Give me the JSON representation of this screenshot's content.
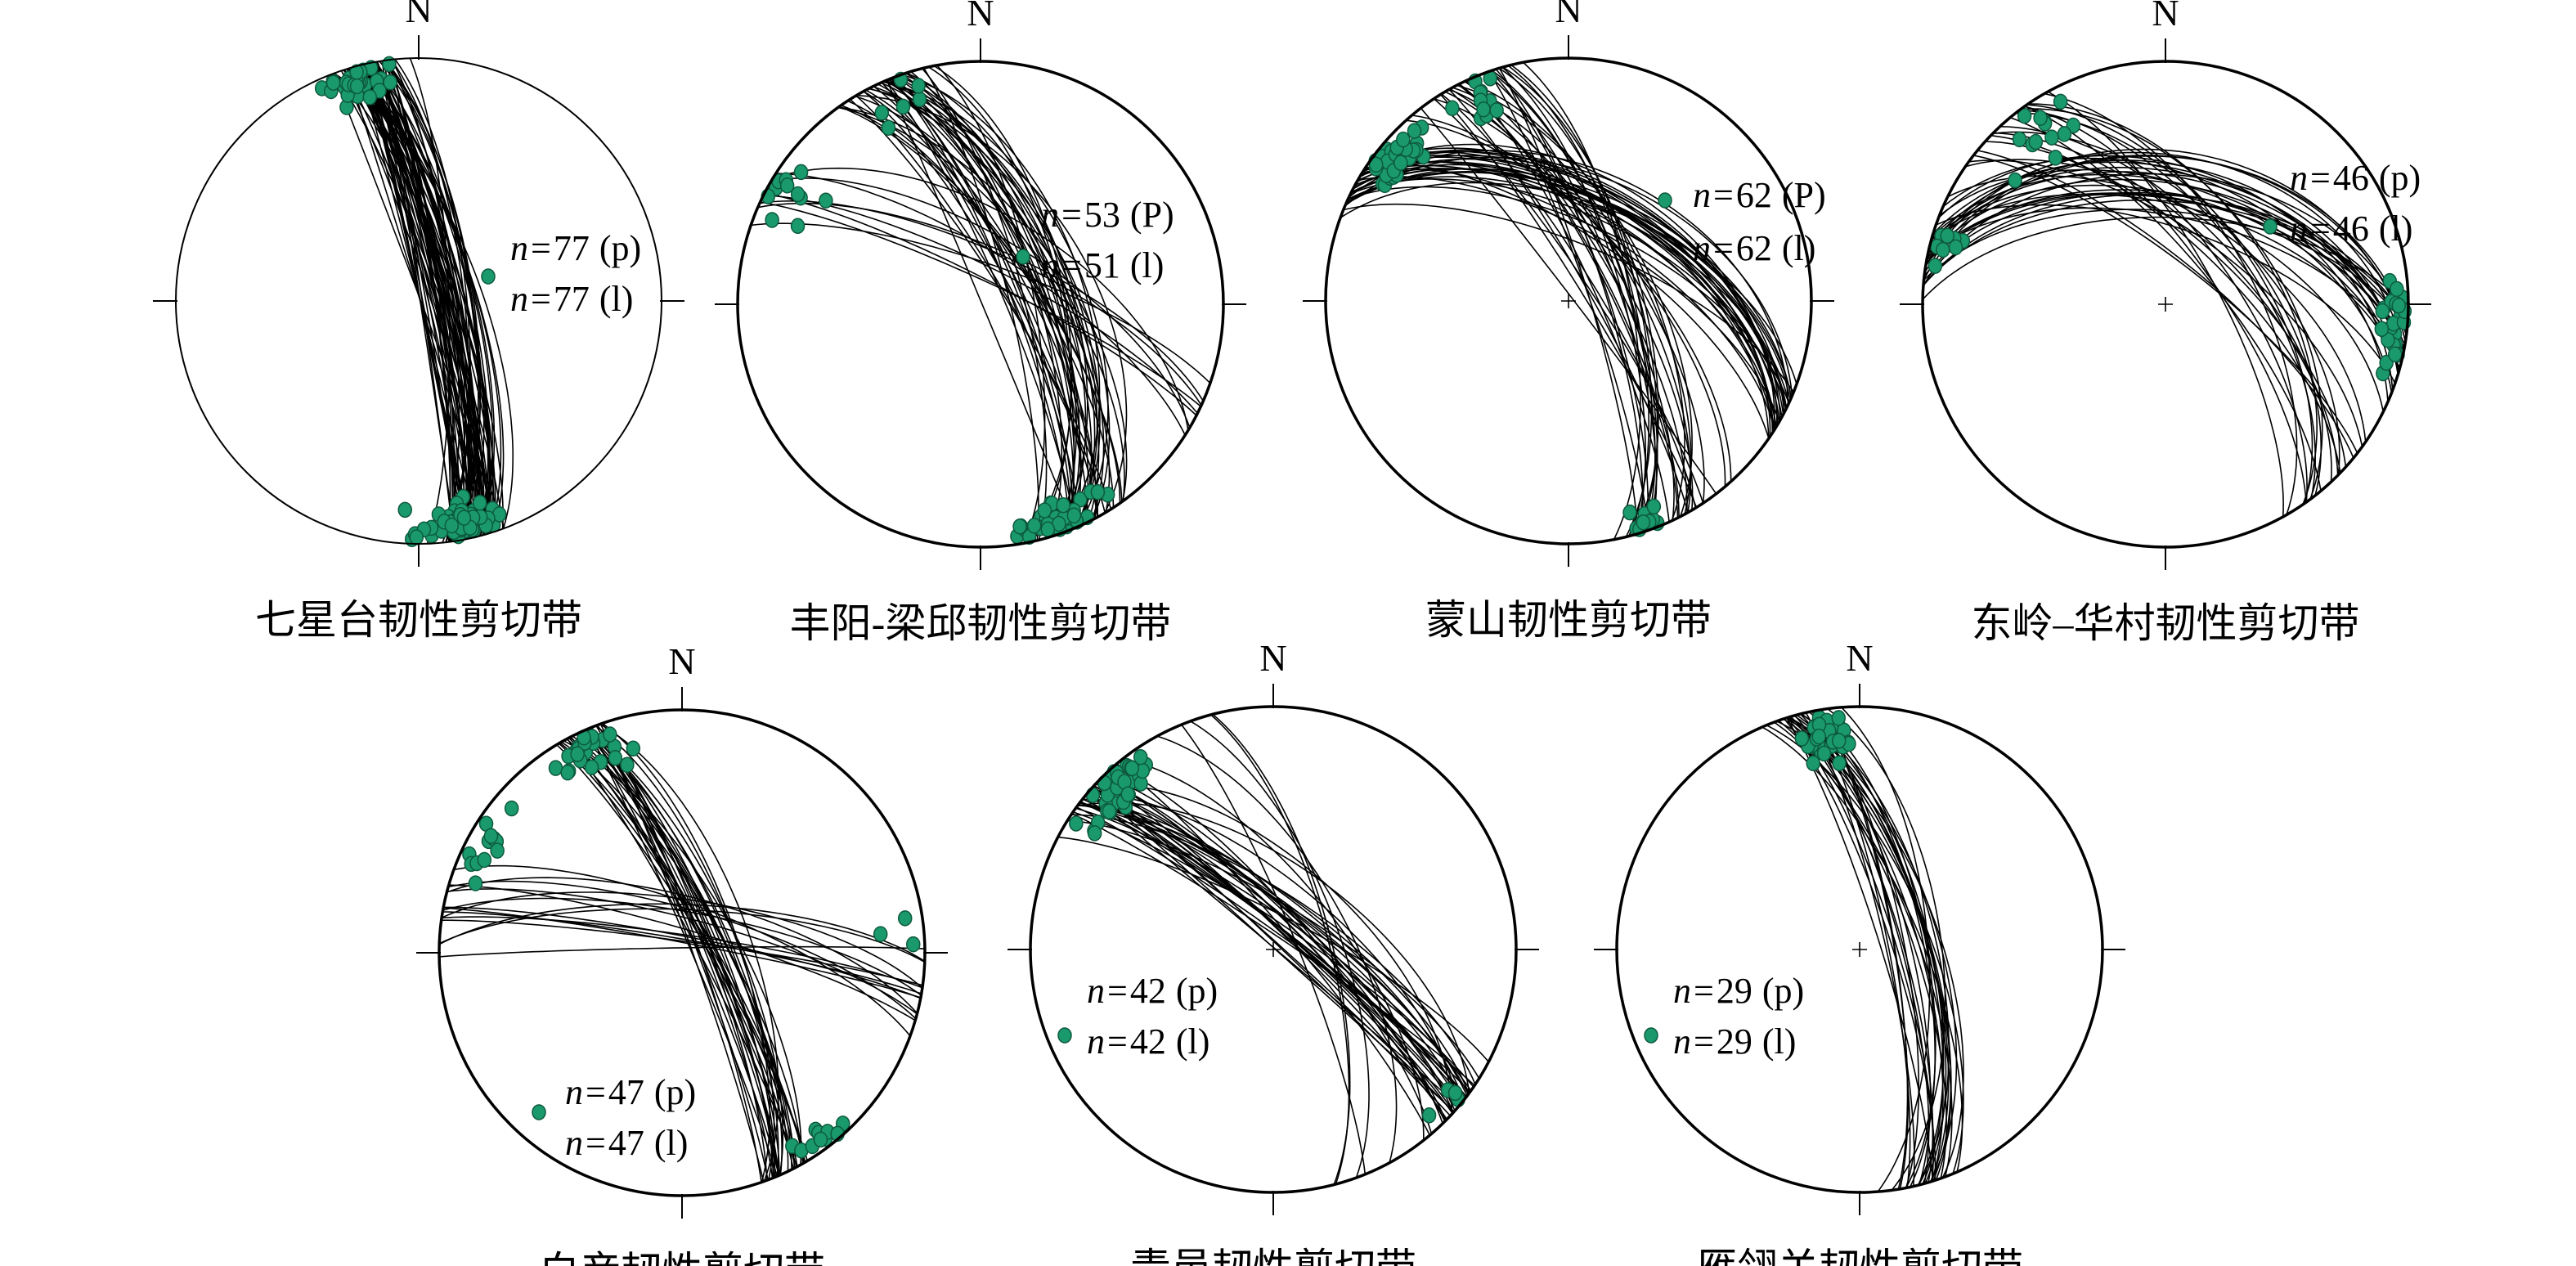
{
  "figure": {
    "north_label": "N",
    "point_color": "#1a9a6c",
    "point_stroke": "#0d5a3e",
    "line_color": "#000000",
    "nets": [
      {
        "title": "七星台韧性剪切带",
        "n_planes": 77,
        "n_lines": 77,
        "plane_tag": "(p)",
        "line_tag": "(l)"
      },
      {
        "title": "丰阳-梁邱韧性剪切带",
        "n_planes": 53,
        "n_lines": 51,
        "plane_tag": "(P)",
        "line_tag": "(l)"
      },
      {
        "title": "蒙山韧性剪切带",
        "n_planes": 62,
        "n_lines": 62,
        "plane_tag": "(P)",
        "line_tag": "(l)"
      },
      {
        "title": "东岭–华村韧性剪切带",
        "n_planes": 46,
        "n_lines": 46,
        "plane_tag": "(p)",
        "line_tag": "(l)"
      },
      {
        "title": "白彦韧性剪切带",
        "n_planes": 47,
        "n_lines": 47,
        "plane_tag": "(p)",
        "line_tag": "(l)"
      },
      {
        "title": "青邑韧性剪切带",
        "n_planes": 42,
        "n_lines": 42,
        "plane_tag": "(p)",
        "line_tag": "(l)"
      },
      {
        "title": "雁翎关韧性剪切带",
        "n_planes": 29,
        "n_lines": 29,
        "plane_tag": "(p)",
        "line_tag": "(l)"
      }
    ]
  }
}
